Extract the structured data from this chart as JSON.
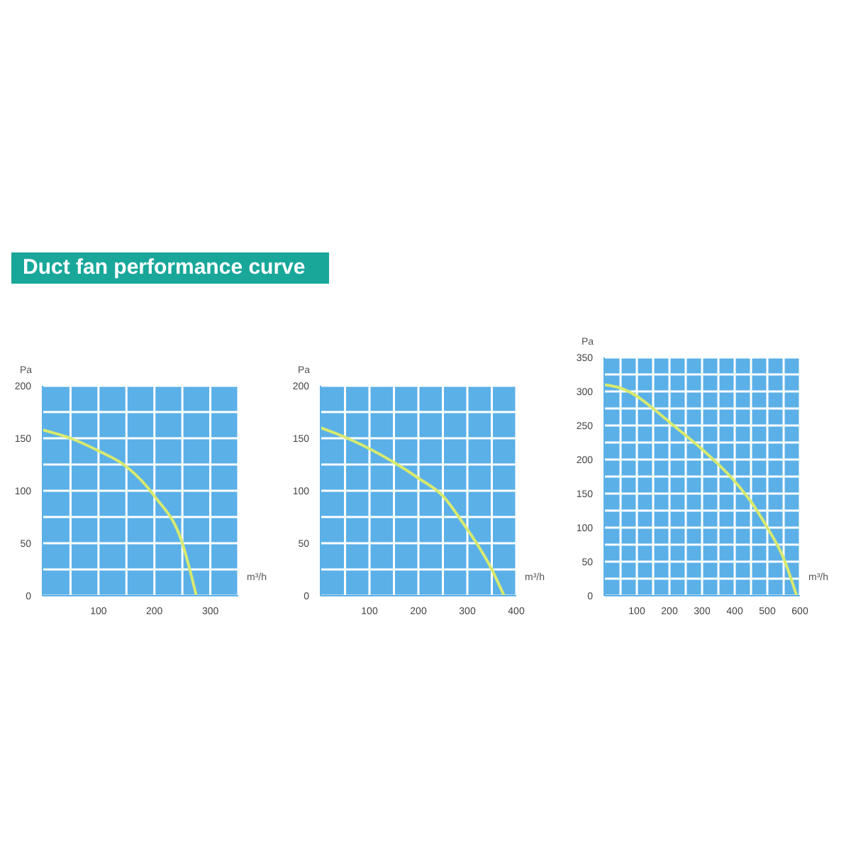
{
  "chart_data": [
    {
      "type": "line",
      "title": "Duct fan performance curve",
      "xlabel": "m³/h",
      "ylabel": "Pa",
      "x": [
        0,
        50,
        100,
        150,
        200,
        250,
        275
      ],
      "series": [
        {
          "color": "#d8ea6e",
          "values": [
            158,
            150,
            138,
            123,
            95,
            50,
            0
          ]
        }
      ],
      "xlim": [
        0,
        350
      ],
      "xticks": [
        {
          "value": 50,
          "label": null
        },
        100,
        {
          "value": 150,
          "label": null
        },
        200,
        {
          "value": 250,
          "label": null
        },
        300,
        {
          "value": 350,
          "label": null
        }
      ],
      "ylim": [
        0,
        200
      ],
      "yticks": [
        0,
        {
          "value": 25,
          "label": null
        },
        50,
        {
          "value": 75,
          "label": null
        },
        100,
        {
          "value": 125,
          "label": null
        },
        150,
        {
          "value": 175,
          "label": null
        },
        200
      ],
      "grid": true,
      "marker": "none"
    },
    {
      "type": "line",
      "xlabel": "m³/h",
      "ylabel": "Pa",
      "x": [
        0,
        50,
        100,
        150,
        200,
        250,
        290,
        350,
        375
      ],
      "series": [
        {
          "color": "#d8ea6e",
          "values": [
            160,
            151,
            140,
            127,
            112,
            95,
            70,
            25,
            0
          ]
        }
      ],
      "xlim": [
        0,
        400
      ],
      "xticks": [
        {
          "value": 50,
          "label": null
        },
        100,
        {
          "value": 150,
          "label": null
        },
        200,
        {
          "value": 250,
          "label": null
        },
        300,
        {
          "value": 350,
          "label": null
        },
        400
      ],
      "ylim": [
        0,
        200
      ],
      "yticks": [
        0,
        {
          "value": 25,
          "label": null
        },
        50,
        {
          "value": 75,
          "label": null
        },
        100,
        {
          "value": 125,
          "label": null
        },
        150,
        {
          "value": 175,
          "label": null
        },
        200
      ],
      "grid": true,
      "marker": "none"
    },
    {
      "type": "line",
      "xlabel": "m³/h",
      "ylabel": "Pa",
      "x": [
        0,
        50,
        100,
        150,
        200,
        300,
        400,
        450,
        500,
        550,
        590
      ],
      "series": [
        {
          "color": "#d8ea6e",
          "values": [
            310,
            305,
            293,
            275,
            255,
            215,
            168,
            138,
            100,
            55,
            0
          ]
        }
      ],
      "xlim": [
        0,
        600
      ],
      "xticks": [
        {
          "value": 50,
          "label": null
        },
        100,
        {
          "value": 150,
          "label": null
        },
        200,
        {
          "value": 250,
          "label": null
        },
        300,
        {
          "value": 350,
          "label": null
        },
        400,
        {
          "value": 450,
          "label": null
        },
        500,
        {
          "value": 550,
          "label": null
        },
        600
      ],
      "ylim": [
        0,
        350
      ],
      "yticks": [
        0,
        {
          "value": 25,
          "label": null
        },
        50,
        {
          "value": 75,
          "label": null
        },
        100,
        {
          "value": 125,
          "label": null
        },
        150,
        {
          "value": 175,
          "label": null
        },
        200,
        {
          "value": 225,
          "label": null
        },
        250,
        {
          "value": 275,
          "label": null
        },
        300,
        {
          "value": 325,
          "label": null
        },
        350
      ],
      "grid": true,
      "marker": "none"
    }
  ]
}
